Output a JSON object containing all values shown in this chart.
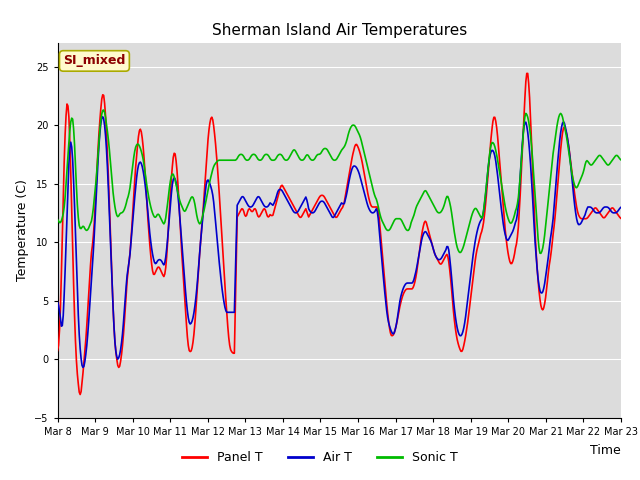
{
  "title": "Sherman Island Air Temperatures",
  "xlabel": "Time",
  "ylabel": "Temperature (C)",
  "ylim": [
    -5,
    27
  ],
  "tick_labels": [
    "Mar 8",
    "Mar 9",
    "Mar 10",
    "Mar 11",
    "Mar 12",
    "Mar 13",
    "Mar 14",
    "Mar 15",
    "Mar 16",
    "Mar 17",
    "Mar 18",
    "Mar 19",
    "Mar 20",
    "Mar 21",
    "Mar 22",
    "Mar 23"
  ],
  "yticks": [
    -5,
    0,
    5,
    10,
    15,
    20,
    25
  ],
  "annotation_text": "SI_mixed",
  "annotation_color": "#8B0000",
  "annotation_bg": "#FFFACD",
  "annotation_edge": "#AAAA00",
  "line_colors": {
    "panel": "#FF0000",
    "air": "#0000CC",
    "sonic": "#00BB00"
  },
  "legend_labels": [
    "Panel T",
    "Air T",
    "Sonic T"
  ],
  "bg_color": "#DCDCDC",
  "grid_color": "#FFFFFF",
  "line_width": 1.2,
  "title_fontsize": 11,
  "label_fontsize": 9,
  "tick_fontsize": 7,
  "legend_fontsize": 9
}
